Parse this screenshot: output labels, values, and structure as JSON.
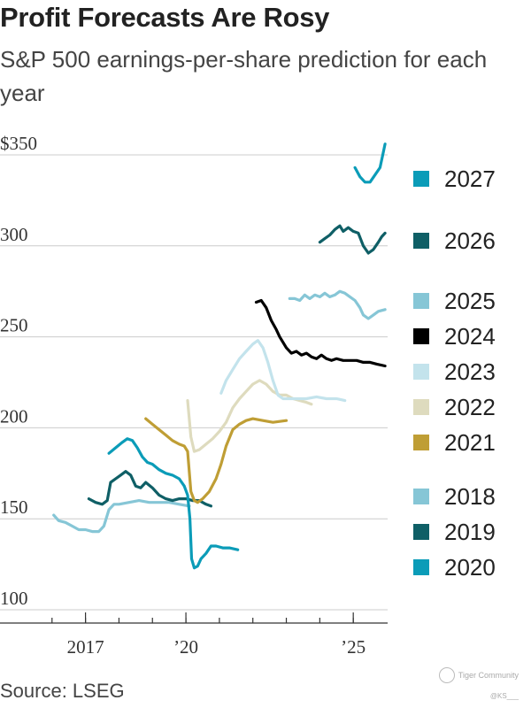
{
  "header": {
    "title": "Profit Forecasts Are Rosy",
    "subtitle": "S&P 500 earnings-per-share prediction for each year"
  },
  "footer": {
    "source": "Source: LSEG",
    "watermark": "Tiger Community",
    "watermark_handle": "@KS___"
  },
  "colors": {
    "gridline": "#cccccc",
    "axis": "#333333",
    "text": "#222222"
  },
  "chart_data": {
    "type": "line",
    "title": "Profit Forecasts Are Rosy",
    "subtitle": "S&P 500 earnings-per-share prediction for each year",
    "xlabel": "",
    "ylabel": "",
    "xlim": [
      2015.9,
      2026.0
    ],
    "ylim": [
      100,
      360
    ],
    "grid": true,
    "x_ticks": [
      {
        "value": 2017.0,
        "label": "2017"
      },
      {
        "value": 2020.0,
        "label": "’20"
      },
      {
        "value": 2025.0,
        "label": "’25"
      }
    ],
    "x_minor_ticks": [
      2016,
      2017,
      2018,
      2019,
      2020,
      2021,
      2022,
      2023,
      2024,
      2025
    ],
    "y_ticks": [
      {
        "value": 100,
        "label": "100"
      },
      {
        "value": 150,
        "label": "150"
      },
      {
        "value": 200,
        "label": "200"
      },
      {
        "value": 250,
        "label": "250"
      },
      {
        "value": 300,
        "label": "300"
      },
      {
        "value": 350,
        "label": "$350"
      }
    ],
    "legend_position": "right",
    "series": [
      {
        "name": "2018",
        "color": "#86c6d6",
        "points": [
          [
            2016.05,
            152
          ],
          [
            2016.2,
            149
          ],
          [
            2016.4,
            148
          ],
          [
            2016.6,
            146
          ],
          [
            2016.8,
            144
          ],
          [
            2017.0,
            144
          ],
          [
            2017.2,
            143
          ],
          [
            2017.4,
            143
          ],
          [
            2017.55,
            146
          ],
          [
            2017.7,
            155
          ],
          [
            2017.85,
            158
          ],
          [
            2018.0,
            158
          ],
          [
            2018.3,
            159
          ],
          [
            2018.6,
            160
          ],
          [
            2018.9,
            159
          ],
          [
            2019.2,
            159
          ],
          [
            2019.5,
            159
          ],
          [
            2019.8,
            158
          ],
          [
            2020.1,
            157
          ]
        ]
      },
      {
        "name": "2019",
        "color": "#0f5f66",
        "points": [
          [
            2017.1,
            161
          ],
          [
            2017.3,
            159
          ],
          [
            2017.5,
            158
          ],
          [
            2017.65,
            160
          ],
          [
            2017.75,
            170
          ],
          [
            2017.9,
            172
          ],
          [
            2018.05,
            174
          ],
          [
            2018.2,
            176
          ],
          [
            2018.35,
            174
          ],
          [
            2018.5,
            168
          ],
          [
            2018.65,
            167
          ],
          [
            2018.8,
            170
          ],
          [
            2019.0,
            167
          ],
          [
            2019.2,
            163
          ],
          [
            2019.4,
            161
          ],
          [
            2019.6,
            160
          ],
          [
            2019.8,
            161
          ],
          [
            2020.0,
            161
          ],
          [
            2020.2,
            160
          ],
          [
            2020.4,
            160
          ],
          [
            2020.6,
            158
          ],
          [
            2020.75,
            157
          ]
        ]
      },
      {
        "name": "2020",
        "color": "#0b9cb8",
        "points": [
          [
            2017.7,
            186
          ],
          [
            2017.9,
            189
          ],
          [
            2018.1,
            192
          ],
          [
            2018.25,
            194
          ],
          [
            2018.4,
            193
          ],
          [
            2018.55,
            189
          ],
          [
            2018.7,
            184
          ],
          [
            2018.85,
            181
          ],
          [
            2019.0,
            180
          ],
          [
            2019.2,
            177
          ],
          [
            2019.4,
            175
          ],
          [
            2019.6,
            174
          ],
          [
            2019.8,
            172
          ],
          [
            2019.95,
            168
          ],
          [
            2020.05,
            163
          ],
          [
            2020.12,
            150
          ],
          [
            2020.17,
            128
          ],
          [
            2020.25,
            123
          ],
          [
            2020.35,
            124
          ],
          [
            2020.45,
            128
          ],
          [
            2020.6,
            131
          ],
          [
            2020.75,
            135
          ],
          [
            2020.9,
            135
          ],
          [
            2021.1,
            134
          ],
          [
            2021.3,
            134
          ],
          [
            2021.55,
            133
          ]
        ]
      },
      {
        "name": "2021",
        "color": "#bf9e35",
        "points": [
          [
            2018.8,
            205
          ],
          [
            2019.0,
            202
          ],
          [
            2019.2,
            199
          ],
          [
            2019.4,
            196
          ],
          [
            2019.6,
            193
          ],
          [
            2019.8,
            191
          ],
          [
            2019.95,
            190
          ],
          [
            2020.05,
            187
          ],
          [
            2020.15,
            165
          ],
          [
            2020.25,
            160
          ],
          [
            2020.35,
            159
          ],
          [
            2020.5,
            161
          ],
          [
            2020.7,
            165
          ],
          [
            2020.9,
            172
          ],
          [
            2021.05,
            180
          ],
          [
            2021.2,
            190
          ],
          [
            2021.4,
            199
          ],
          [
            2021.6,
            202
          ],
          [
            2021.8,
            204
          ],
          [
            2022.0,
            205
          ],
          [
            2022.3,
            204
          ],
          [
            2022.6,
            203
          ],
          [
            2023.0,
            204
          ]
        ]
      },
      {
        "name": "2022",
        "color": "#dedbbe",
        "points": [
          [
            2020.05,
            215
          ],
          [
            2020.15,
            195
          ],
          [
            2020.25,
            187
          ],
          [
            2020.4,
            188
          ],
          [
            2020.6,
            191
          ],
          [
            2020.8,
            194
          ],
          [
            2021.0,
            198
          ],
          [
            2021.2,
            203
          ],
          [
            2021.4,
            211
          ],
          [
            2021.6,
            216
          ],
          [
            2021.8,
            220
          ],
          [
            2022.0,
            224
          ],
          [
            2022.2,
            226
          ],
          [
            2022.4,
            224
          ],
          [
            2022.6,
            220
          ],
          [
            2022.8,
            218
          ],
          [
            2023.0,
            218
          ],
          [
            2023.2,
            216
          ],
          [
            2023.4,
            215
          ],
          [
            2023.6,
            214
          ],
          [
            2023.75,
            213
          ]
        ]
      },
      {
        "name": "2023",
        "color": "#c3e3ec",
        "points": [
          [
            2021.05,
            219
          ],
          [
            2021.2,
            226
          ],
          [
            2021.4,
            232
          ],
          [
            2021.6,
            238
          ],
          [
            2021.8,
            242
          ],
          [
            2022.0,
            246
          ],
          [
            2022.15,
            248
          ],
          [
            2022.3,
            244
          ],
          [
            2022.45,
            236
          ],
          [
            2022.6,
            226
          ],
          [
            2022.75,
            218
          ],
          [
            2022.9,
            216
          ],
          [
            2023.1,
            216
          ],
          [
            2023.3,
            216
          ],
          [
            2023.6,
            216
          ],
          [
            2023.9,
            217
          ],
          [
            2024.2,
            216
          ],
          [
            2024.5,
            216
          ],
          [
            2024.75,
            215
          ]
        ]
      },
      {
        "name": "2024",
        "color": "#000000",
        "points": [
          [
            2022.1,
            269
          ],
          [
            2022.25,
            270
          ],
          [
            2022.4,
            266
          ],
          [
            2022.55,
            259
          ],
          [
            2022.7,
            254
          ],
          [
            2022.8,
            250
          ],
          [
            2022.9,
            247
          ],
          [
            2023.0,
            244
          ],
          [
            2023.15,
            241
          ],
          [
            2023.3,
            242
          ],
          [
            2023.45,
            240
          ],
          [
            2023.6,
            241
          ],
          [
            2023.75,
            239
          ],
          [
            2023.9,
            238
          ],
          [
            2024.05,
            240
          ],
          [
            2024.2,
            238
          ],
          [
            2024.35,
            237
          ],
          [
            2024.5,
            238
          ],
          [
            2024.7,
            237
          ],
          [
            2024.9,
            237
          ],
          [
            2025.1,
            237
          ],
          [
            2025.3,
            236
          ],
          [
            2025.5,
            236
          ],
          [
            2025.7,
            235
          ],
          [
            2025.95,
            234
          ]
        ]
      },
      {
        "name": "2025",
        "color": "#86c6d6",
        "points": [
          [
            2023.1,
            271
          ],
          [
            2023.25,
            271
          ],
          [
            2023.4,
            270
          ],
          [
            2023.55,
            273
          ],
          [
            2023.7,
            271
          ],
          [
            2023.85,
            273
          ],
          [
            2024.0,
            272
          ],
          [
            2024.15,
            274
          ],
          [
            2024.3,
            272
          ],
          [
            2024.45,
            273
          ],
          [
            2024.6,
            275
          ],
          [
            2024.75,
            274
          ],
          [
            2024.9,
            272
          ],
          [
            2025.05,
            270
          ],
          [
            2025.2,
            266
          ],
          [
            2025.3,
            262
          ],
          [
            2025.45,
            260
          ],
          [
            2025.6,
            262
          ],
          [
            2025.75,
            264
          ],
          [
            2025.95,
            265
          ]
        ]
      },
      {
        "name": "2026",
        "color": "#0f5f66",
        "points": [
          [
            2024.0,
            302
          ],
          [
            2024.15,
            304
          ],
          [
            2024.3,
            306
          ],
          [
            2024.45,
            309
          ],
          [
            2024.6,
            311
          ],
          [
            2024.7,
            308
          ],
          [
            2024.85,
            310
          ],
          [
            2025.0,
            308
          ],
          [
            2025.15,
            307
          ],
          [
            2025.3,
            300
          ],
          [
            2025.45,
            296
          ],
          [
            2025.6,
            298
          ],
          [
            2025.75,
            302
          ],
          [
            2025.85,
            305
          ],
          [
            2025.95,
            307
          ]
        ]
      },
      {
        "name": "2027",
        "color": "#0b9cb8",
        "points": [
          [
            2025.05,
            343
          ],
          [
            2025.2,
            338
          ],
          [
            2025.35,
            335
          ],
          [
            2025.5,
            335
          ],
          [
            2025.65,
            339
          ],
          [
            2025.8,
            343
          ],
          [
            2025.88,
            350
          ],
          [
            2025.95,
            356
          ]
        ]
      }
    ],
    "legend": [
      {
        "label": "2027",
        "color": "#0b9cb8"
      },
      {
        "label": "2026",
        "color": "#0f5f66"
      },
      {
        "label": "2025",
        "color": "#86c6d6"
      },
      {
        "label": "2024",
        "color": "#000000"
      },
      {
        "label": "2023",
        "color": "#c3e3ec"
      },
      {
        "label": "2022",
        "color": "#dedbbe"
      },
      {
        "label": "2021",
        "color": "#bf9e35"
      },
      {
        "label": "2018",
        "color": "#86c6d6"
      },
      {
        "label": "2019",
        "color": "#0f5f66"
      },
      {
        "label": "2020",
        "color": "#0b9cb8"
      }
    ]
  }
}
